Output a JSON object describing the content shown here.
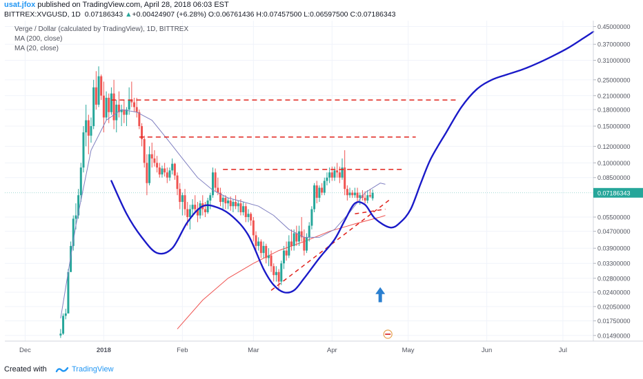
{
  "header": {
    "author": "usat.jfox",
    "published": " published on TradingView.com, April 28, 2018 06:03 EST",
    "symbol": "BITTREX:XVGUSD, 1D",
    "last": "0.07186343",
    "change_arrow": "▲",
    "change": "+0.00424907 (+6.28%)",
    "o_label": "O:",
    "o_value": "0.06761436",
    "h_label": "H:",
    "h_value": "0.07457500",
    "l_label": "L:",
    "l_value": "0.06597500",
    "c_label": "C:",
    "c_value": "0.07186343"
  },
  "legend": {
    "title": "Verge / Dollar (calculated by TradingView), 1D, BITTREX",
    "ma200": "MA (200, close)",
    "ma20": "MA (20, close)"
  },
  "footer": {
    "created_with": "Created with",
    "brand": "TradingView"
  },
  "colors": {
    "up_candle": "#26a69a",
    "down_candle": "#ef5350",
    "ma200": "#ef5350",
    "ma20": "#7f7fc0",
    "forecast_curve": "#1a1ac8",
    "resistance": "#e0201a",
    "arrow": "#2a7fd0",
    "price_tag": "#26a69a"
  },
  "chart_data": {
    "type": "candlestick",
    "scale": "log",
    "ylim": [
      0.014,
      0.48
    ],
    "y_ticks": [
      "0.45000000",
      "0.37000000",
      "0.31000000",
      "0.25000000",
      "0.21000000",
      "0.18000000",
      "0.15000000",
      "0.12000000",
      "0.10000000",
      "0.08500000",
      "0.07186343",
      "0.05500000",
      "0.04700000",
      "0.03900000",
      "0.03300000",
      "0.02800000",
      "0.02400000",
      "0.02050000",
      "0.01750000",
      "0.01490000"
    ],
    "y_tick_values": [
      0.45,
      0.37,
      0.31,
      0.25,
      0.21,
      0.18,
      0.15,
      0.12,
      0.1,
      0.085,
      0.07186343,
      0.055,
      0.047,
      0.039,
      0.033,
      0.028,
      0.024,
      0.0205,
      0.0175,
      0.0149
    ],
    "x_ticks": [
      "Dec",
      "2018",
      "Feb",
      "Mar",
      "Apr",
      "May",
      "Jun",
      "Jul"
    ],
    "x_tick_days": [
      0,
      31,
      62,
      90,
      121,
      151,
      182,
      212
    ],
    "xlim_days": [
      -8,
      224
    ],
    "last_price": 0.07186343,
    "ohlc": {
      "start_day": 14,
      "rows": [
        [
          0.0149,
          0.016,
          0.0145,
          0.0152
        ],
        [
          0.0152,
          0.019,
          0.015,
          0.0185
        ],
        [
          0.0185,
          0.02,
          0.0178,
          0.019
        ],
        [
          0.019,
          0.031,
          0.019,
          0.03
        ],
        [
          0.03,
          0.042,
          0.03,
          0.04
        ],
        [
          0.04,
          0.056,
          0.038,
          0.054
        ],
        [
          0.054,
          0.064,
          0.048,
          0.056
        ],
        [
          0.056,
          0.075,
          0.054,
          0.07
        ],
        [
          0.07,
          0.1,
          0.065,
          0.095
        ],
        [
          0.095,
          0.15,
          0.09,
          0.14
        ],
        [
          0.14,
          0.19,
          0.12,
          0.16
        ],
        [
          0.16,
          0.17,
          0.11,
          0.135
        ],
        [
          0.135,
          0.165,
          0.125,
          0.15
        ],
        [
          0.15,
          0.25,
          0.145,
          0.23
        ],
        [
          0.23,
          0.275,
          0.18,
          0.19
        ],
        [
          0.19,
          0.29,
          0.185,
          0.26
        ],
        [
          0.26,
          0.265,
          0.2,
          0.21
        ],
        [
          0.21,
          0.245,
          0.14,
          0.165
        ],
        [
          0.165,
          0.22,
          0.16,
          0.205
        ],
        [
          0.205,
          0.215,
          0.155,
          0.175
        ],
        [
          0.175,
          0.23,
          0.17,
          0.215
        ],
        [
          0.215,
          0.25,
          0.145,
          0.16
        ],
        [
          0.16,
          0.2,
          0.14,
          0.19
        ],
        [
          0.19,
          0.22,
          0.165,
          0.175
        ],
        [
          0.175,
          0.19,
          0.15,
          0.18
        ],
        [
          0.18,
          0.2,
          0.155,
          0.17
        ],
        [
          0.17,
          0.185,
          0.15,
          0.18
        ],
        [
          0.18,
          0.23,
          0.17,
          0.2
        ],
        [
          0.2,
          0.245,
          0.185,
          0.195
        ],
        [
          0.195,
          0.205,
          0.175,
          0.185
        ],
        [
          0.185,
          0.205,
          0.165,
          0.175
        ],
        [
          0.175,
          0.18,
          0.145,
          0.15
        ],
        [
          0.15,
          0.155,
          0.12,
          0.13
        ],
        [
          0.13,
          0.135,
          0.095,
          0.1
        ],
        [
          0.1,
          0.11,
          0.07,
          0.08
        ],
        [
          0.08,
          0.12,
          0.078,
          0.11
        ],
        [
          0.11,
          0.125,
          0.095,
          0.105
        ],
        [
          0.105,
          0.115,
          0.096,
          0.1
        ],
        [
          0.1,
          0.108,
          0.09,
          0.095
        ],
        [
          0.095,
          0.1,
          0.085,
          0.088
        ],
        [
          0.088,
          0.097,
          0.085,
          0.094
        ],
        [
          0.094,
          0.1,
          0.086,
          0.09
        ],
        [
          0.09,
          0.095,
          0.08,
          0.085
        ],
        [
          0.085,
          0.095,
          0.082,
          0.092
        ],
        [
          0.092,
          0.105,
          0.088,
          0.099
        ],
        [
          0.099,
          0.1,
          0.083,
          0.087
        ],
        [
          0.087,
          0.09,
          0.07,
          0.075
        ],
        [
          0.075,
          0.08,
          0.06,
          0.065
        ],
        [
          0.065,
          0.072,
          0.056,
          0.07
        ],
        [
          0.07,
          0.075,
          0.056,
          0.06
        ],
        [
          0.06,
          0.065,
          0.05,
          0.055
        ],
        [
          0.055,
          0.063,
          0.048,
          0.06
        ],
        [
          0.06,
          0.067,
          0.055,
          0.063
        ],
        [
          0.063,
          0.07,
          0.058,
          0.06
        ],
        [
          0.06,
          0.065,
          0.052,
          0.056
        ],
        [
          0.056,
          0.066,
          0.054,
          0.064
        ],
        [
          0.064,
          0.07,
          0.056,
          0.06
        ],
        [
          0.06,
          0.065,
          0.055,
          0.058
        ],
        [
          0.058,
          0.068,
          0.057,
          0.066
        ],
        [
          0.066,
          0.072,
          0.06,
          0.07
        ],
        [
          0.07,
          0.095,
          0.068,
          0.09
        ],
        [
          0.09,
          0.094,
          0.073,
          0.076
        ],
        [
          0.076,
          0.085,
          0.07,
          0.072
        ],
        [
          0.072,
          0.076,
          0.062,
          0.065
        ],
        [
          0.065,
          0.07,
          0.06,
          0.068
        ],
        [
          0.068,
          0.07,
          0.06,
          0.064
        ],
        [
          0.064,
          0.068,
          0.06,
          0.066
        ],
        [
          0.066,
          0.069,
          0.059,
          0.062
        ],
        [
          0.062,
          0.067,
          0.058,
          0.065
        ],
        [
          0.065,
          0.07,
          0.06,
          0.062
        ],
        [
          0.062,
          0.066,
          0.058,
          0.064
        ],
        [
          0.064,
          0.067,
          0.056,
          0.058
        ],
        [
          0.058,
          0.065,
          0.056,
          0.062
        ],
        [
          0.062,
          0.064,
          0.052,
          0.055
        ],
        [
          0.055,
          0.06,
          0.052,
          0.057
        ],
        [
          0.057,
          0.058,
          0.05,
          0.053
        ],
        [
          0.053,
          0.055,
          0.042,
          0.045
        ],
        [
          0.045,
          0.047,
          0.038,
          0.04
        ],
        [
          0.04,
          0.044,
          0.038,
          0.042
        ],
        [
          0.042,
          0.043,
          0.035,
          0.037
        ],
        [
          0.037,
          0.042,
          0.035,
          0.04
        ],
        [
          0.04,
          0.041,
          0.033,
          0.035
        ],
        [
          0.035,
          0.039,
          0.032,
          0.036
        ],
        [
          0.036,
          0.038,
          0.03,
          0.032
        ],
        [
          0.032,
          0.033,
          0.027,
          0.029
        ],
        [
          0.029,
          0.032,
          0.027,
          0.03
        ],
        [
          0.03,
          0.031,
          0.025,
          0.027
        ],
        [
          0.027,
          0.034,
          0.026,
          0.033
        ],
        [
          0.033,
          0.04,
          0.031,
          0.038
        ],
        [
          0.038,
          0.042,
          0.034,
          0.036
        ],
        [
          0.036,
          0.045,
          0.035,
          0.042
        ],
        [
          0.042,
          0.048,
          0.038,
          0.04
        ],
        [
          0.04,
          0.048,
          0.038,
          0.046
        ],
        [
          0.046,
          0.05,
          0.04,
          0.042
        ],
        [
          0.042,
          0.05,
          0.04,
          0.047
        ],
        [
          0.047,
          0.055,
          0.042,
          0.044
        ],
        [
          0.044,
          0.048,
          0.036,
          0.038
        ],
        [
          0.038,
          0.046,
          0.037,
          0.044
        ],
        [
          0.044,
          0.052,
          0.042,
          0.05
        ],
        [
          0.05,
          0.062,
          0.048,
          0.06
        ],
        [
          0.06,
          0.08,
          0.058,
          0.078
        ],
        [
          0.078,
          0.082,
          0.064,
          0.068
        ],
        [
          0.068,
          0.078,
          0.065,
          0.076
        ],
        [
          0.076,
          0.08,
          0.07,
          0.072
        ],
        [
          0.072,
          0.085,
          0.07,
          0.082
        ],
        [
          0.082,
          0.09,
          0.078,
          0.085
        ],
        [
          0.085,
          0.095,
          0.08,
          0.09
        ],
        [
          0.09,
          0.096,
          0.082,
          0.085
        ],
        [
          0.085,
          0.096,
          0.082,
          0.092
        ],
        [
          0.092,
          0.1,
          0.085,
          0.09
        ],
        [
          0.09,
          0.096,
          0.08,
          0.085
        ],
        [
          0.085,
          0.105,
          0.083,
          0.095
        ],
        [
          0.095,
          0.115,
          0.07,
          0.075
        ],
        [
          0.075,
          0.078,
          0.066,
          0.07
        ],
        [
          0.07,
          0.076,
          0.068,
          0.072
        ],
        [
          0.072,
          0.074,
          0.068,
          0.07
        ],
        [
          0.07,
          0.076,
          0.068,
          0.072
        ],
        [
          0.072,
          0.076,
          0.065,
          0.068
        ],
        [
          0.068,
          0.072,
          0.063,
          0.07
        ],
        [
          0.07,
          0.074,
          0.066,
          0.068
        ],
        [
          0.068,
          0.073,
          0.064,
          0.066
        ],
        [
          0.066,
          0.074,
          0.064,
          0.07
        ],
        [
          0.07,
          0.075,
          0.068,
          0.069
        ],
        [
          0.06761,
          0.07458,
          0.06598,
          0.07186
        ]
      ]
    },
    "ma200": {
      "days": [
        60,
        70,
        80,
        90,
        100,
        110,
        120,
        130,
        140,
        142
      ],
      "values": [
        0.016,
        0.022,
        0.028,
        0.033,
        0.038,
        0.042,
        0.047,
        0.051,
        0.055,
        0.056
      ]
    },
    "ma20": {
      "days": [
        14,
        20,
        26,
        32,
        38,
        44,
        50,
        56,
        62,
        68,
        74,
        80,
        86,
        92,
        98,
        104,
        110,
        116,
        122,
        128,
        134,
        140,
        142
      ],
      "values": [
        0.018,
        0.05,
        0.115,
        0.16,
        0.18,
        0.175,
        0.16,
        0.13,
        0.105,
        0.085,
        0.074,
        0.068,
        0.065,
        0.062,
        0.056,
        0.048,
        0.044,
        0.044,
        0.048,
        0.058,
        0.072,
        0.08,
        0.079
      ]
    },
    "resistance_levels": [
      {
        "price": 0.2,
        "from_day": 34,
        "to_day": 171
      },
      {
        "price": 0.133,
        "from_day": 45,
        "to_day": 154
      },
      {
        "price": 0.093,
        "from_day": 78,
        "to_day": 149
      }
    ],
    "support_line": {
      "from": [
        97,
        0.0245
      ],
      "to": [
        144,
        0.067
      ]
    },
    "upper_support_line": {
      "from": [
        130,
        0.057
      ],
      "to": [
        142,
        0.06
      ]
    },
    "forecast_curve": {
      "days": [
        34,
        40,
        46,
        52,
        58,
        64,
        70,
        76,
        82,
        88,
        94,
        98,
        102,
        106,
        110,
        116,
        122,
        126,
        130,
        134,
        138,
        144,
        148,
        152,
        156,
        160,
        166,
        172,
        178,
        184,
        190,
        196,
        202,
        208,
        214,
        220,
        224
      ],
      "values": [
        0.082,
        0.057,
        0.044,
        0.037,
        0.039,
        0.052,
        0.062,
        0.061,
        0.055,
        0.045,
        0.031,
        0.026,
        0.024,
        0.0245,
        0.028,
        0.035,
        0.043,
        0.053,
        0.064,
        0.063,
        0.054,
        0.049,
        0.052,
        0.06,
        0.08,
        0.105,
        0.14,
        0.185,
        0.225,
        0.25,
        0.265,
        0.28,
        0.3,
        0.325,
        0.355,
        0.395,
        0.425
      ]
    },
    "arrow": {
      "day": 140,
      "y_from": 0.0215,
      "y_to": 0.025
    }
  }
}
